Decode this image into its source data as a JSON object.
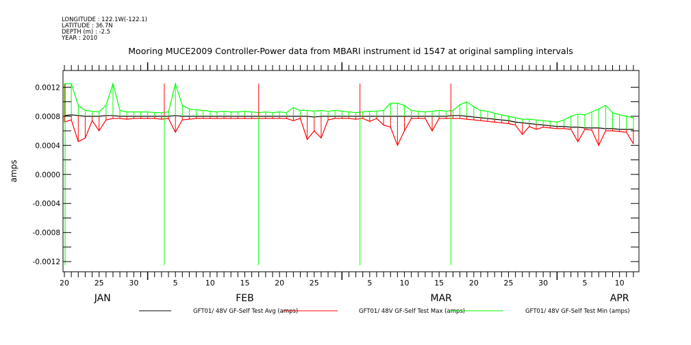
{
  "header": {
    "lines": [
      "LONGITUDE : 122.1W(-122.1)",
      "LATITUDE : 36.7N",
      "DEPTH (m) : -2.5",
      "YEAR : 2010"
    ]
  },
  "chart_data": {
    "type": "line",
    "title": "Mooring MUCE2009 Controller-Power data from MBARI instrument id 1547 at original sampling intervals",
    "ylabel": "amps",
    "xlabel": "",
    "x_start": "2010-01-20",
    "x_unit": "days since Jan 20",
    "xlim": [
      -0.2,
      82.8
    ],
    "ylim": [
      -0.00134,
      0.00143
    ],
    "yticks": [
      0.0012,
      0.0008,
      0.0004,
      0.0,
      -0.0004,
      -0.0008,
      -0.0012
    ],
    "ytick_labels": [
      "0.0012",
      "0.0008",
      "0.0004",
      "0.0000",
      "-0.0004",
      "-0.0008",
      "-0.0012"
    ],
    "xticks": [
      {
        "day": 0,
        "label": "20"
      },
      {
        "day": 5,
        "label": "25"
      },
      {
        "day": 10,
        "label": "30"
      },
      {
        "day": 16,
        "label": "5"
      },
      {
        "day": 21,
        "label": "10"
      },
      {
        "day": 26,
        "label": "15"
      },
      {
        "day": 31,
        "label": "20"
      },
      {
        "day": 36,
        "label": "25"
      },
      {
        "day": 44,
        "label": "5"
      },
      {
        "day": 49,
        "label": "10"
      },
      {
        "day": 54,
        "label": "15"
      },
      {
        "day": 59,
        "label": "20"
      },
      {
        "day": 64,
        "label": "25"
      },
      {
        "day": 69,
        "label": "30"
      },
      {
        "day": 75,
        "label": "5"
      },
      {
        "day": 80,
        "label": "10"
      }
    ],
    "month_starts": [
      12,
      40,
      71
    ],
    "months": [
      {
        "day": 5.5,
        "label": "JAN"
      },
      {
        "day": 26,
        "label": "FEB"
      },
      {
        "day": 54.3,
        "label": "MAR"
      },
      {
        "day": 80,
        "label": "APR"
      }
    ],
    "series": [
      {
        "name": "GFT01/ 48V GF-Self Test Avg (amps)",
        "color": "#000000",
        "values": [
          0.00081,
          0.00082,
          0.00081,
          0.0008,
          0.0008,
          0.0008,
          0.00081,
          0.00081,
          0.0008,
          0.0008,
          0.0008,
          0.0008,
          0.0008,
          0.0008,
          0.0008,
          0.0008,
          0.00081,
          0.0008,
          0.0008,
          0.0008,
          0.0008,
          0.0008,
          0.0008,
          0.0008,
          0.0008,
          0.0008,
          0.0008,
          0.0008,
          0.0008,
          0.0008,
          0.0008,
          0.0008,
          0.0008,
          0.0008,
          0.0008,
          0.0008,
          0.00079,
          0.0008,
          0.0008,
          0.0008,
          0.0008,
          0.0008,
          0.0008,
          0.0008,
          0.0008,
          0.0008,
          0.0008,
          0.0008,
          0.0008,
          0.0008,
          0.0008,
          0.0008,
          0.0008,
          0.0008,
          0.0008,
          0.0008,
          0.00081,
          0.00081,
          0.0008,
          0.00079,
          0.00078,
          0.00077,
          0.00076,
          0.00075,
          0.00074,
          0.00072,
          0.00071,
          0.0007,
          0.00069,
          0.00068,
          0.00067,
          0.00066,
          0.00066,
          0.00065,
          0.00065,
          0.00064,
          0.00064,
          0.00064,
          0.00063,
          0.00063,
          0.00062,
          0.00062,
          0.00062
        ]
      },
      {
        "name": "GFT01/ 48V GF-Self Test Max (amps)",
        "color": "#ff0000",
        "values": [
          0.00072,
          0.00075,
          0.00045,
          0.0005,
          0.00074,
          0.0006,
          0.00075,
          0.00077,
          0.00077,
          0.00076,
          0.00077,
          0.00077,
          0.00077,
          0.00077,
          0.00076,
          0.00077,
          0.00058,
          0.00075,
          0.00076,
          0.00077,
          0.00077,
          0.00077,
          0.00077,
          0.00077,
          0.00077,
          0.00077,
          0.00077,
          0.00077,
          0.00077,
          0.00077,
          0.00077,
          0.00077,
          0.00077,
          0.00074,
          0.00077,
          0.00048,
          0.0006,
          0.0005,
          0.00075,
          0.00077,
          0.00077,
          0.00077,
          0.00076,
          0.00077,
          0.00073,
          0.00077,
          0.00068,
          0.00065,
          0.0004,
          0.0006,
          0.00077,
          0.00077,
          0.00077,
          0.0006,
          0.00077,
          0.00077,
          0.00077,
          0.00077,
          0.00076,
          0.00075,
          0.00074,
          0.00073,
          0.00072,
          0.00071,
          0.0007,
          0.00068,
          0.00055,
          0.00066,
          0.00062,
          0.00065,
          0.00064,
          0.00063,
          0.00063,
          0.00062,
          0.00045,
          0.00062,
          0.00061,
          0.0004,
          0.0006,
          0.0006,
          0.00059,
          0.00058,
          0.00042
        ]
      },
      {
        "name": "GFT01/ 48V GF-Self Test Min (amps)",
        "color": "#00ff00",
        "values": [
          0.00125,
          0.00125,
          0.00095,
          0.00088,
          0.00087,
          0.00086,
          0.00095,
          0.00125,
          0.00088,
          0.00086,
          0.00086,
          0.00086,
          0.00086,
          0.00085,
          0.00085,
          0.00086,
          0.00125,
          0.00095,
          0.0009,
          0.00089,
          0.00088,
          0.00087,
          0.00086,
          0.00087,
          0.00086,
          0.00086,
          0.00087,
          0.00086,
          0.00085,
          0.00086,
          0.00085,
          0.00086,
          0.00085,
          0.00092,
          0.00088,
          0.00088,
          0.00087,
          0.00088,
          0.00087,
          0.00088,
          0.00087,
          0.00086,
          0.00085,
          0.00086,
          0.00087,
          0.00087,
          0.00088,
          0.00098,
          0.00098,
          0.00095,
          0.00088,
          0.00087,
          0.00086,
          0.00087,
          0.00088,
          0.00087,
          0.00088,
          0.00096,
          0.001,
          0.00093,
          0.00088,
          0.00087,
          0.00084,
          0.00082,
          0.0008,
          0.00078,
          0.00076,
          0.00076,
          0.00075,
          0.00074,
          0.00073,
          0.00072,
          0.00075,
          0.0008,
          0.00083,
          0.00082,
          0.00086,
          0.0009,
          0.00095,
          0.00085,
          0.00082,
          0.0008,
          0.00078
        ]
      }
    ],
    "spikes": [
      {
        "day": 0.1,
        "min": -0.00125,
        "max": 0.00125
      },
      {
        "day": 14.4,
        "min": -0.00125,
        "max": 0.00125
      },
      {
        "day": 28.0,
        "min": -0.00125,
        "max": 0.00125
      },
      {
        "day": 42.6,
        "min": -0.00125,
        "max": 0.00125
      },
      {
        "day": 55.7,
        "min": -0.00125,
        "max": 0.00125
      }
    ],
    "legend": [
      "GFT01/ 48V GF-Self Test Avg (amps)",
      "GFT01/ 48V GF-Self Test Max (amps)",
      "GFT01/ 48V GF-Self Test Min (amps)"
    ],
    "legend_position": "bottom"
  }
}
